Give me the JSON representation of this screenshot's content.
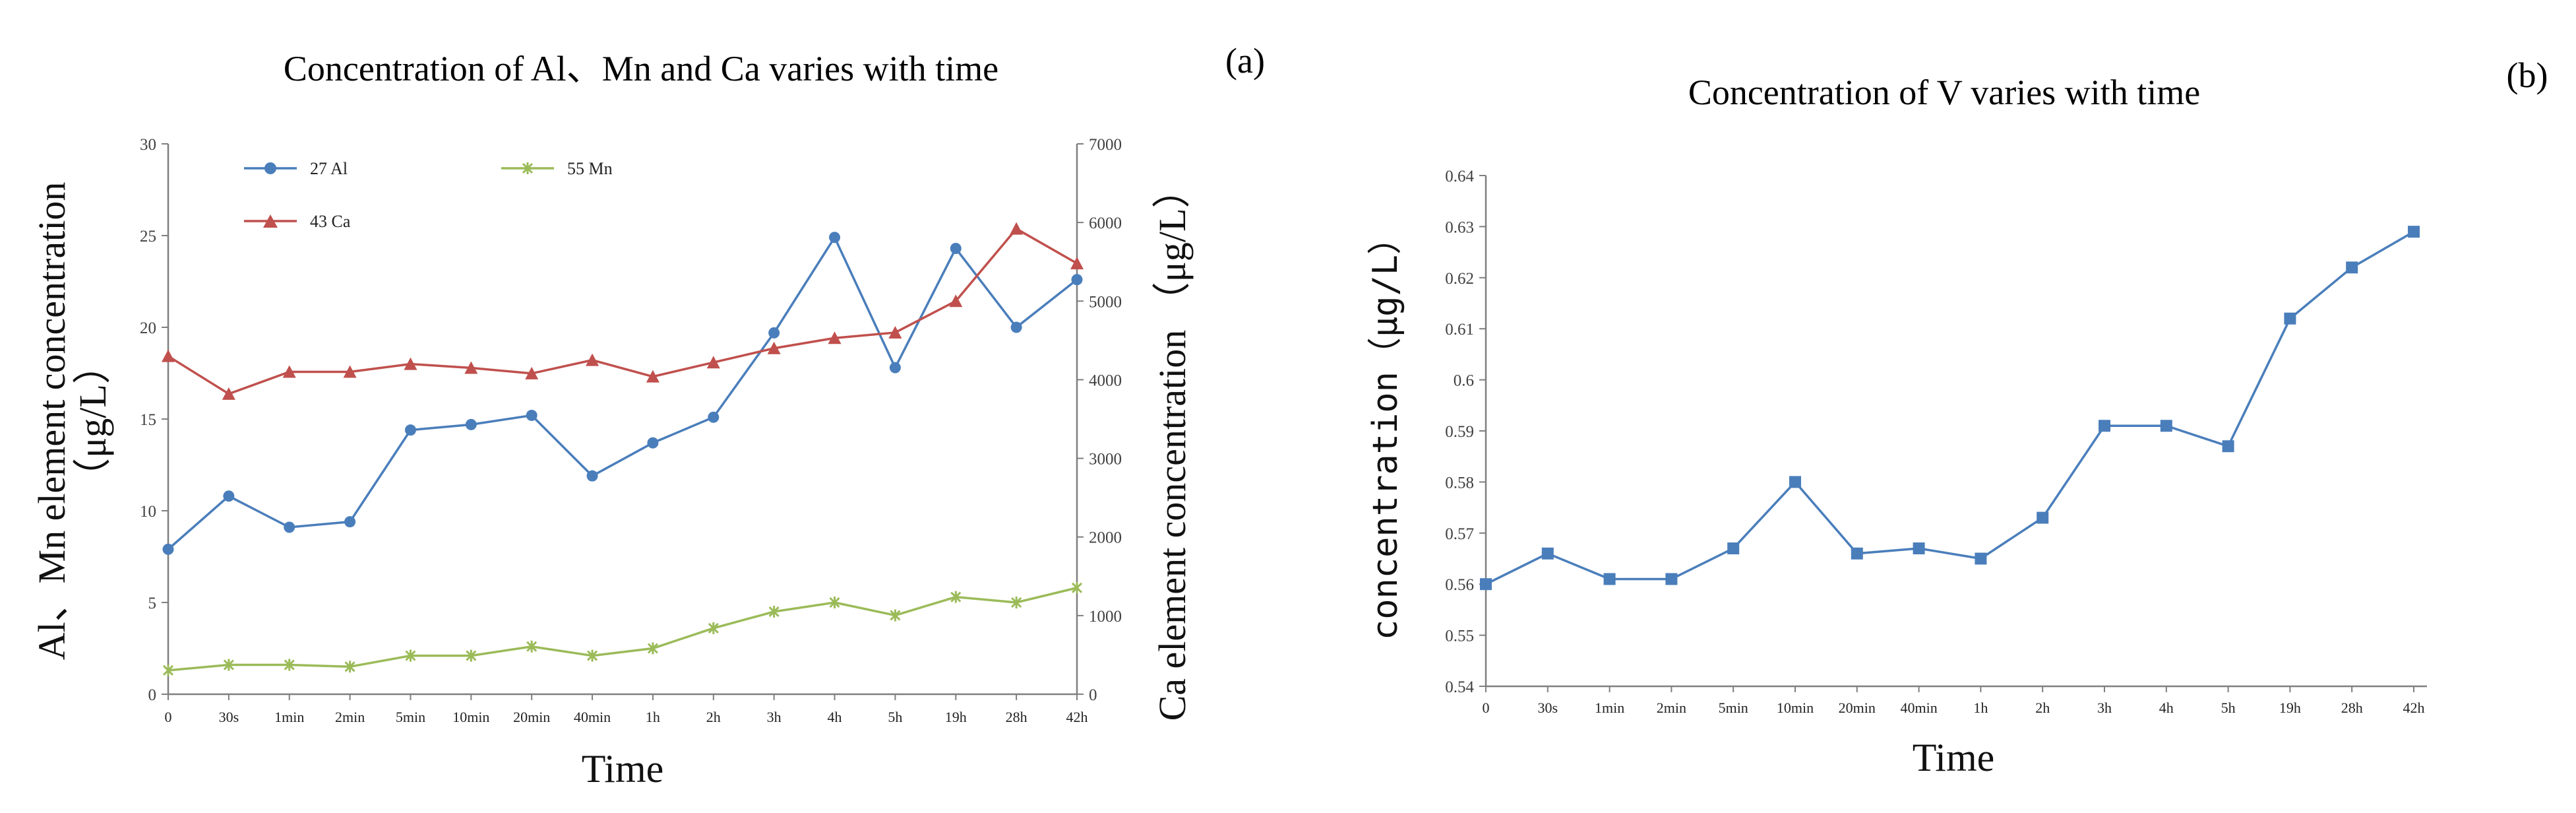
{
  "figure": {
    "panel_a_label": "(a)",
    "panel_b_label": "(b)"
  },
  "chart_data": [
    {
      "type": "line",
      "title": "Concentration of Al、Mn and Ca varies with time",
      "xlabel": "Time",
      "ylabel": "Al、Mn element concentration（μg/L）",
      "ylabel_lines": [
        "Al、Mn element concentration",
        "（μg/L）"
      ],
      "y2label": "Ca element concentration （μg/L）",
      "categories": [
        "0",
        "30s",
        "1min",
        "2min",
        "5min",
        "10min",
        "20min",
        "40min",
        "1h",
        "2h",
        "3h",
        "4h",
        "5h",
        "19h",
        "28h",
        "42h"
      ],
      "ylim": [
        0,
        30
      ],
      "yticks": [
        0,
        5,
        10,
        15,
        20,
        25,
        30
      ],
      "y2lim": [
        0,
        7000
      ],
      "y2ticks": [
        0,
        1000,
        2000,
        3000,
        4000,
        5000,
        6000,
        7000
      ],
      "grid": false,
      "legend_position": "top-left",
      "series": [
        {
          "name": "27 Al",
          "axis": "left",
          "color": "#4a7ebb",
          "marker": "circle",
          "values": [
            7.9,
            10.8,
            9.1,
            9.4,
            14.4,
            14.7,
            15.2,
            11.9,
            13.7,
            15.1,
            19.7,
            24.9,
            17.8,
            24.3,
            20.0,
            22.6
          ]
        },
        {
          "name": "55 Mn",
          "axis": "left",
          "color": "#9bbb59",
          "marker": "star",
          "values": [
            1.3,
            1.6,
            1.6,
            1.5,
            2.1,
            2.1,
            2.6,
            2.1,
            2.5,
            3.6,
            4.5,
            5.0,
            4.3,
            5.3,
            5.0,
            5.8
          ]
        },
        {
          "name": "43 Ca",
          "axis": "right",
          "color": "#c0504d",
          "marker": "triangle",
          "values": [
            4300,
            3820,
            4100,
            4100,
            4200,
            4150,
            4080,
            4250,
            4040,
            4220,
            4400,
            4530,
            4600,
            5000,
            5920,
            5480
          ]
        }
      ]
    },
    {
      "type": "line",
      "title": "Concentration of V varies with time",
      "xlabel": "Time",
      "ylabel": "concentration（μg/L）",
      "categories": [
        "0",
        "30s",
        "1min",
        "2min",
        "5min",
        "10min",
        "20min",
        "40min",
        "1h",
        "2h",
        "3h",
        "4h",
        "5h",
        "19h",
        "28h",
        "42h"
      ],
      "ylim": [
        0.54,
        0.64
      ],
      "yticks": [
        "0.54",
        "0.55",
        "0.56",
        "0.57",
        "0.58",
        "0.59",
        "0.6",
        "0.61",
        "0.62",
        "0.63",
        "0.64"
      ],
      "grid": false,
      "series": [
        {
          "name": "V",
          "color": "#4a7ebb",
          "marker": "square",
          "values": [
            0.56,
            0.566,
            0.561,
            0.561,
            0.567,
            0.58,
            0.566,
            0.567,
            0.565,
            0.573,
            0.591,
            0.591,
            0.587,
            0.612,
            0.622,
            0.629
          ]
        }
      ]
    }
  ]
}
